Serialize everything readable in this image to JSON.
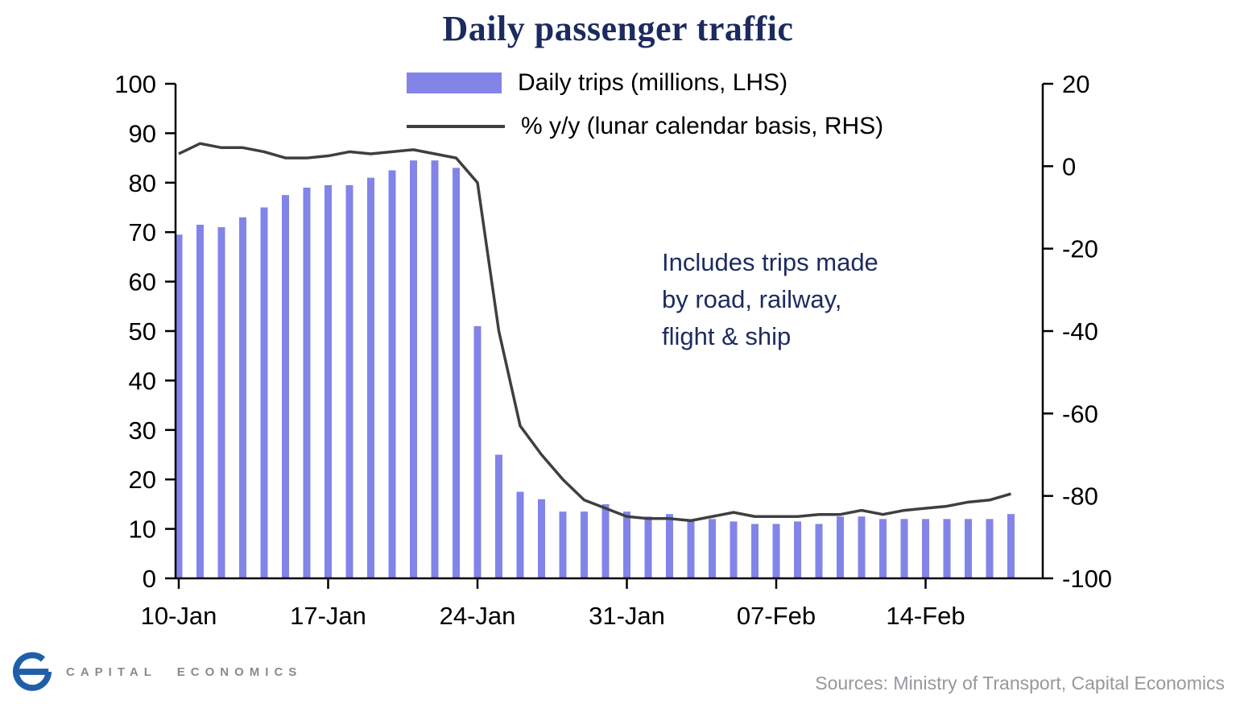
{
  "chart_data": {
    "type": "bar",
    "subtype": "bar+line combo, dual axis",
    "title": "Daily passenger traffic",
    "legend": [
      {
        "label": "Daily trips (millions, LHS)",
        "marker": "bar-swatch",
        "color": "#8384e8"
      },
      {
        "label": "% y/y (lunar calendar basis, RHS)",
        "marker": "line-swatch",
        "color": "#3f3f3f"
      }
    ],
    "annotation_lines": [
      "Includes trips made",
      "by road, railway,",
      "flight & ship"
    ],
    "colors": {
      "title": "#1c2b5f",
      "annotation": "#1c2b5f",
      "bar": "#8384e8",
      "line": "#3f3f3f",
      "axis": "#000000"
    },
    "lhs_axis": {
      "min": 0,
      "max": 100,
      "ticks": [
        100,
        90,
        80,
        70,
        60,
        50,
        40,
        30,
        20,
        10,
        0
      ]
    },
    "rhs_axis": {
      "min": -100,
      "max": 20,
      "ticks": [
        20,
        0,
        -20,
        -40,
        -60,
        -80,
        -100
      ]
    },
    "x_ticks": [
      {
        "label": "10-Jan",
        "index": 0
      },
      {
        "label": "17-Jan",
        "index": 7
      },
      {
        "label": "24-Jan",
        "index": 14
      },
      {
        "label": "31-Jan",
        "index": 21
      },
      {
        "label": "07-Feb",
        "index": 28
      },
      {
        "label": "14-Feb",
        "index": 35
      }
    ],
    "dates": [
      "10-Jan",
      "11-Jan",
      "12-Jan",
      "13-Jan",
      "14-Jan",
      "15-Jan",
      "16-Jan",
      "17-Jan",
      "18-Jan",
      "19-Jan",
      "20-Jan",
      "21-Jan",
      "22-Jan",
      "23-Jan",
      "24-Jan",
      "25-Jan",
      "26-Jan",
      "27-Jan",
      "28-Jan",
      "29-Jan",
      "30-Jan",
      "31-Jan",
      "01-Feb",
      "02-Feb",
      "03-Feb",
      "04-Feb",
      "05-Feb",
      "06-Feb",
      "07-Feb",
      "08-Feb",
      "09-Feb",
      "10-Feb",
      "11-Feb",
      "12-Feb",
      "13-Feb",
      "14-Feb",
      "15-Feb",
      "16-Feb",
      "17-Feb",
      "18-Feb"
    ],
    "series": [
      {
        "name": "Daily trips (millions, LHS)",
        "type": "bar",
        "axis": "LHS",
        "values": [
          69.5,
          71.5,
          71,
          73,
          75,
          77.5,
          79,
          79.5,
          79.5,
          81,
          82.5,
          84.5,
          84.5,
          83,
          51,
          25,
          17.5,
          16,
          13.5,
          13.5,
          15,
          13.5,
          12.5,
          13,
          12,
          12,
          11.5,
          11,
          11,
          11.5,
          11,
          12.5,
          12.5,
          12,
          12,
          12,
          12,
          12,
          12,
          13
        ]
      },
      {
        "name": "% y/y (lunar calendar basis, RHS)",
        "type": "line",
        "axis": "RHS",
        "values": [
          3,
          5.5,
          4.5,
          4.5,
          3.5,
          2,
          2,
          2.5,
          3.5,
          3,
          3.5,
          4,
          3,
          2,
          -4,
          -40,
          -63,
          -70,
          -76,
          -81,
          -83,
          -85,
          -85.5,
          -85.5,
          -86,
          -85,
          -84,
          -85,
          -85,
          -85,
          -84.5,
          -84.5,
          -83.5,
          -84.5,
          -83.5,
          -83,
          -82.5,
          -81.5,
          -81,
          -79.5
        ]
      }
    ]
  },
  "footer": {
    "logo_text": "CAPITAL ECONOMICS",
    "sources": "Sources: Ministry of Transport, Capital Economics"
  }
}
